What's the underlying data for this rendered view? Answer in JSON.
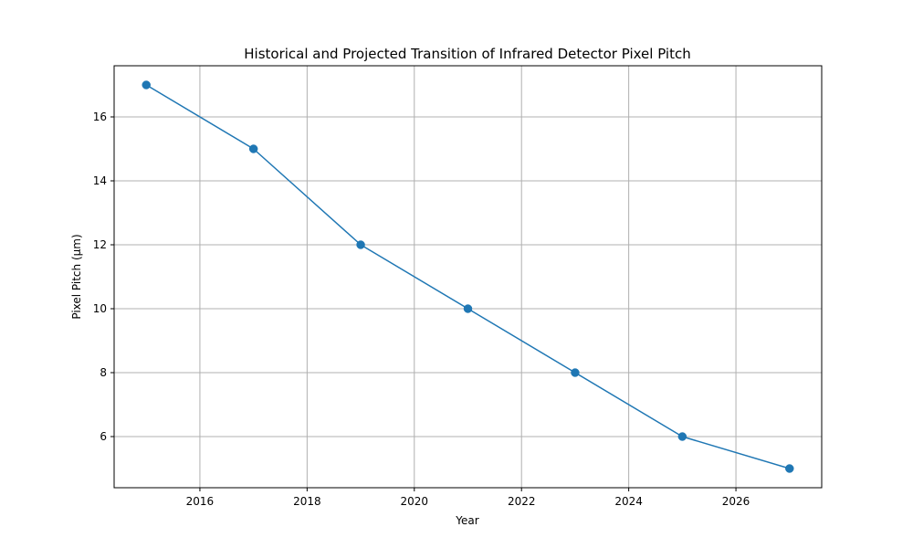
{
  "chart_data": {
    "type": "line",
    "title": "Historical and Projected Transition of Infrared Detector Pixel Pitch",
    "xlabel": "Year",
    "ylabel": "Pixel Pitch (µm)",
    "x": [
      2015,
      2017,
      2019,
      2021,
      2023,
      2025,
      2027
    ],
    "series": [
      {
        "values": [
          17,
          15,
          12,
          10,
          8,
          6,
          5
        ],
        "color": "#1f77b4",
        "marker": "circle"
      }
    ],
    "xlim": [
      2014.4,
      2027.6
    ],
    "ylim": [
      4.4,
      17.6
    ],
    "x_ticks": [
      {
        "value": 2016,
        "label": "2016"
      },
      {
        "value": 2018,
        "label": "2018"
      },
      {
        "value": 2020,
        "label": "2020"
      },
      {
        "value": 2022,
        "label": "2022"
      },
      {
        "value": 2024,
        "label": "2024"
      },
      {
        "value": 2026,
        "label": "2026"
      }
    ],
    "y_ticks": [
      {
        "value": 6,
        "label": "6"
      },
      {
        "value": 8,
        "label": "8"
      },
      {
        "value": 10,
        "label": "10"
      },
      {
        "value": 12,
        "label": "12"
      },
      {
        "value": 14,
        "label": "14"
      },
      {
        "value": 16,
        "label": "16"
      }
    ],
    "grid": true,
    "grid_color": "#b0b0b0",
    "legend": false
  }
}
